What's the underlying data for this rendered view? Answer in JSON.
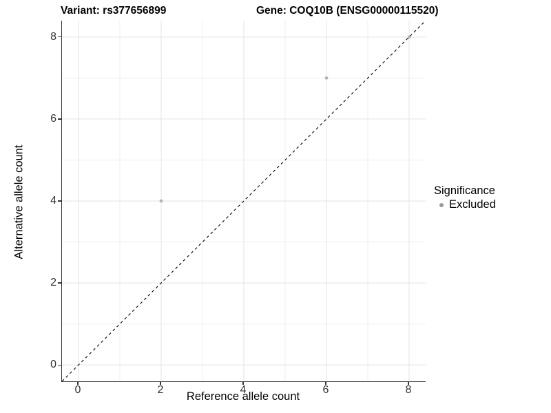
{
  "titles": {
    "variant": "Variant: rs377656899",
    "gene": "Gene: COQ10B (ENSG00000115520)"
  },
  "chart_data": {
    "type": "scatter",
    "title_left": "Variant: rs377656899",
    "title_right": "Gene: COQ10B (ENSG00000115520)",
    "xlabel": "Reference allele count",
    "ylabel": "Alternative allele count",
    "xlim": [
      -0.4,
      8.4
    ],
    "ylim": [
      -0.4,
      8.4
    ],
    "x_major_ticks": [
      0,
      2,
      4,
      6,
      8
    ],
    "y_major_ticks": [
      0,
      2,
      4,
      6,
      8
    ],
    "grid_major_x": [
      0,
      2,
      4,
      6,
      8
    ],
    "grid_minor_x": [
      1,
      3,
      5,
      7
    ],
    "grid_major_y": [
      0,
      2,
      4,
      6,
      8
    ],
    "grid_minor_y": [
      1,
      3,
      5,
      7
    ],
    "grid": "on",
    "series": [
      {
        "name": "Excluded",
        "points": [
          {
            "x": 2,
            "y": 4
          },
          {
            "x": 6,
            "y": 7
          },
          {
            "x": 8,
            "y": 8
          }
        ]
      }
    ],
    "identity_line": {
      "slope": 1,
      "intercept": 0,
      "style": "dashed",
      "color": "#000000"
    },
    "legend": {
      "position": "right",
      "title": "Significance",
      "items": [
        {
          "label": "Excluded",
          "color": "#999999"
        }
      ]
    },
    "colors": {
      "point": "#b3b3b3",
      "grid_major": "#e3e3e3",
      "grid_minor": "#efefef",
      "axis_line": "#333333",
      "tick_label": "#333333",
      "background": "#ffffff"
    }
  }
}
